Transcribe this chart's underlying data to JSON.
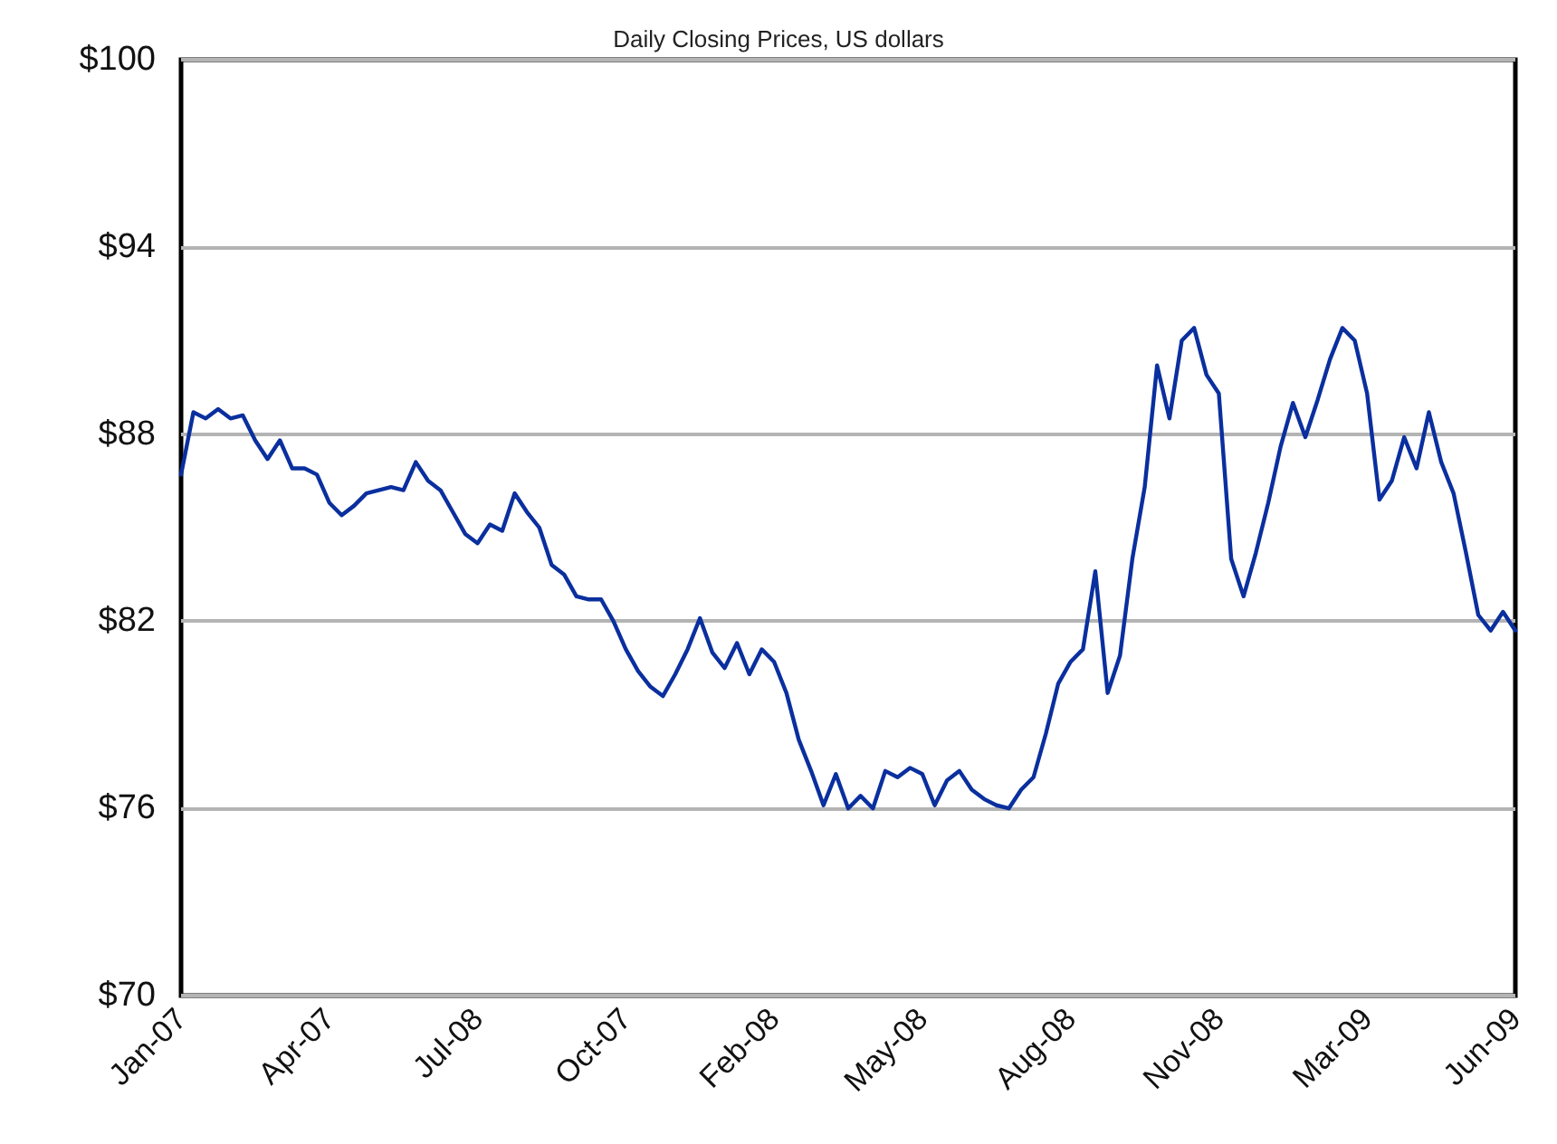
{
  "chart_data": {
    "type": "line",
    "title": "Daily Closing Prices, US dollars",
    "categories": [
      "Jan-07",
      null,
      null,
      null,
      null,
      null,
      null,
      null,
      null,
      null,
      null,
      null,
      "Apr-07",
      null,
      null,
      null,
      null,
      null,
      null,
      null,
      null,
      null,
      null,
      null,
      "Jul-08",
      null,
      null,
      null,
      null,
      null,
      null,
      null,
      null,
      null,
      null,
      null,
      "Oct-07",
      null,
      null,
      null,
      null,
      null,
      null,
      null,
      null,
      null,
      null,
      null,
      "Feb-08",
      null,
      null,
      null,
      null,
      null,
      null,
      null,
      null,
      null,
      null,
      null,
      "May-08",
      null,
      null,
      null,
      null,
      null,
      null,
      null,
      null,
      null,
      null,
      null,
      "Aug-08",
      null,
      null,
      null,
      null,
      null,
      null,
      null,
      null,
      null,
      null,
      null,
      "Nov-08",
      null,
      null,
      null,
      null,
      null,
      null,
      null,
      null,
      null,
      null,
      null,
      "Mar-09",
      null,
      null,
      null,
      null,
      null,
      null,
      null,
      null,
      null,
      null,
      null,
      "Jun-09"
    ],
    "series": [
      {
        "color": "#0a2f9e",
        "values": [
          86.7,
          88.7,
          88.5,
          88.8,
          88.5,
          88.6,
          87.8,
          87.2,
          87.8,
          86.9,
          86.9,
          86.7,
          85.8,
          85.4,
          85.7,
          86.1,
          86.2,
          86.3,
          86.2,
          87.1,
          86.5,
          86.2,
          85.5,
          84.8,
          84.5,
          85.1,
          84.9,
          86.1,
          85.5,
          85.0,
          83.8,
          83.5,
          82.8,
          82.7,
          82.7,
          82.0,
          81.1,
          80.4,
          79.9,
          79.6,
          80.3,
          81.1,
          82.1,
          81.0,
          80.5,
          81.3,
          80.3,
          81.1,
          80.7,
          79.7,
          78.2,
          77.2,
          76.1,
          77.1,
          76.0,
          76.4,
          76.0,
          77.2,
          77.0,
          77.3,
          77.1,
          76.1,
          76.9,
          77.2,
          76.6,
          76.3,
          76.1,
          76.0,
          76.6,
          77.0,
          78.4,
          80.0,
          80.7,
          81.1,
          83.6,
          79.7,
          80.9,
          84.0,
          86.3,
          90.2,
          88.5,
          91.0,
          91.4,
          89.9,
          89.3,
          84.0,
          82.8,
          84.2,
          85.8,
          87.6,
          89.0,
          87.9,
          89.1,
          90.4,
          91.4,
          91.0,
          89.3,
          85.9,
          86.5,
          87.9,
          86.9,
          88.7,
          87.1,
          86.1,
          84.2,
          82.2,
          81.7,
          82.3,
          81.7
        ]
      }
    ],
    "ylim": [
      70,
      100
    ],
    "yticks": [
      {
        "value": 70,
        "label": "$70"
      },
      {
        "value": 76,
        "label": "$76"
      },
      {
        "value": 82,
        "label": "$82"
      },
      {
        "value": 88,
        "label": "$88"
      },
      {
        "value": 94,
        "label": "$94"
      },
      {
        "value": 100,
        "label": "$100"
      }
    ],
    "grid": "y",
    "marker": "none",
    "line_style": "solid"
  }
}
